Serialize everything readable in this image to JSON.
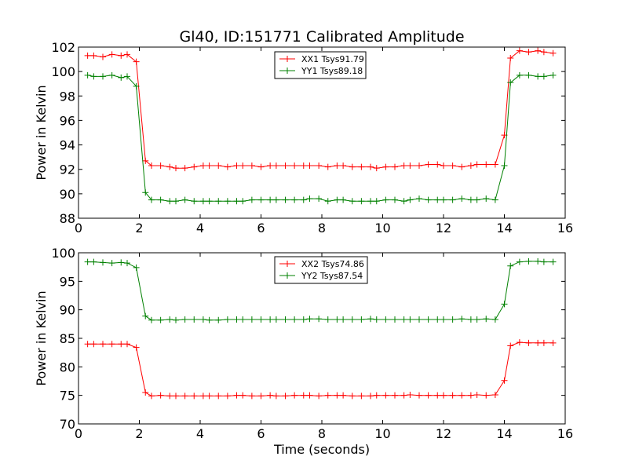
{
  "title": "Gl40, ID:151771 Calibrated Amplitude",
  "chart_data": [
    {
      "type": "line",
      "xlabel": "",
      "ylabel": "Power in Kelvin",
      "xlim": [
        0,
        16
      ],
      "ylim": [
        88,
        102
      ],
      "xticks": [
        0,
        2,
        4,
        6,
        8,
        10,
        12,
        14,
        16
      ],
      "yticks": [
        88,
        90,
        92,
        94,
        96,
        98,
        100,
        102
      ],
      "legend": "top-center",
      "grid": false,
      "x": [
        0.3,
        0.5,
        0.8,
        1.1,
        1.4,
        1.6,
        1.9,
        2.2,
        2.4,
        2.7,
        3.0,
        3.2,
        3.5,
        3.8,
        4.1,
        4.3,
        4.6,
        4.9,
        5.2,
        5.4,
        5.7,
        6.0,
        6.3,
        6.5,
        6.8,
        7.1,
        7.4,
        7.6,
        7.9,
        8.2,
        8.5,
        8.7,
        9.0,
        9.3,
        9.6,
        9.8,
        10.1,
        10.4,
        10.7,
        10.9,
        11.2,
        11.5,
        11.8,
        12.0,
        12.3,
        12.6,
        12.9,
        13.1,
        13.4,
        13.7,
        14.0,
        14.2,
        14.5,
        14.8,
        15.1,
        15.3,
        15.6
      ],
      "series": [
        {
          "name": "XX1 Tsys91.79",
          "color": "#ff0000",
          "values": [
            101.3,
            101.3,
            101.2,
            101.4,
            101.3,
            101.4,
            100.8,
            92.7,
            92.3,
            92.3,
            92.2,
            92.1,
            92.1,
            92.2,
            92.3,
            92.3,
            92.3,
            92.2,
            92.3,
            92.3,
            92.3,
            92.2,
            92.3,
            92.3,
            92.3,
            92.3,
            92.3,
            92.3,
            92.3,
            92.2,
            92.3,
            92.3,
            92.2,
            92.2,
            92.2,
            92.1,
            92.2,
            92.2,
            92.3,
            92.3,
            92.3,
            92.4,
            92.4,
            92.3,
            92.3,
            92.2,
            92.3,
            92.4,
            92.4,
            92.4,
            94.8,
            101.1,
            101.7,
            101.6,
            101.7,
            101.6,
            101.5
          ]
        },
        {
          "name": "YY1 Tsys89.18",
          "color": "#008000",
          "values": [
            99.7,
            99.6,
            99.6,
            99.7,
            99.5,
            99.6,
            98.8,
            90.1,
            89.5,
            89.5,
            89.4,
            89.4,
            89.5,
            89.4,
            89.4,
            89.4,
            89.4,
            89.4,
            89.4,
            89.4,
            89.5,
            89.5,
            89.5,
            89.5,
            89.5,
            89.5,
            89.5,
            89.6,
            89.6,
            89.4,
            89.5,
            89.5,
            89.4,
            89.4,
            89.4,
            89.4,
            89.5,
            89.5,
            89.4,
            89.5,
            89.6,
            89.5,
            89.5,
            89.5,
            89.5,
            89.6,
            89.5,
            89.5,
            89.6,
            89.5,
            92.3,
            99.1,
            99.7,
            99.7,
            99.6,
            99.6,
            99.7
          ]
        }
      ]
    },
    {
      "type": "line",
      "xlabel": "Time (seconds)",
      "ylabel": "Power in Kelvin",
      "xlim": [
        0,
        16
      ],
      "ylim": [
        70,
        100
      ],
      "xticks": [
        0,
        2,
        4,
        6,
        8,
        10,
        12,
        14,
        16
      ],
      "yticks": [
        70,
        75,
        80,
        85,
        90,
        95,
        100
      ],
      "legend": "top-center",
      "grid": false,
      "x": [
        0.3,
        0.5,
        0.8,
        1.1,
        1.4,
        1.6,
        1.9,
        2.2,
        2.4,
        2.7,
        3.0,
        3.2,
        3.5,
        3.8,
        4.1,
        4.3,
        4.6,
        4.9,
        5.2,
        5.4,
        5.7,
        6.0,
        6.3,
        6.5,
        6.8,
        7.1,
        7.4,
        7.6,
        7.9,
        8.2,
        8.5,
        8.7,
        9.0,
        9.3,
        9.6,
        9.8,
        10.1,
        10.4,
        10.7,
        10.9,
        11.2,
        11.5,
        11.8,
        12.0,
        12.3,
        12.6,
        12.9,
        13.1,
        13.4,
        13.7,
        14.0,
        14.2,
        14.5,
        14.8,
        15.1,
        15.3,
        15.6
      ],
      "series": [
        {
          "name": "XX2 Tsys74.86",
          "color": "#ff0000",
          "values": [
            84.0,
            84.0,
            84.0,
            84.0,
            84.0,
            84.0,
            83.4,
            75.5,
            74.9,
            75.0,
            74.9,
            74.9,
            74.9,
            74.9,
            74.9,
            74.9,
            74.9,
            74.9,
            75.0,
            75.0,
            74.9,
            74.9,
            75.0,
            74.9,
            74.9,
            75.0,
            75.0,
            75.0,
            74.9,
            75.0,
            75.0,
            75.0,
            74.9,
            74.9,
            74.9,
            75.0,
            75.0,
            75.0,
            75.0,
            75.1,
            75.0,
            75.0,
            75.0,
            75.0,
            75.0,
            75.0,
            75.0,
            75.1,
            75.0,
            75.1,
            77.6,
            83.7,
            84.3,
            84.2,
            84.2,
            84.2,
            84.2
          ]
        },
        {
          "name": "YY2 Tsys87.54",
          "color": "#008000",
          "values": [
            98.4,
            98.4,
            98.3,
            98.2,
            98.3,
            98.2,
            97.4,
            88.9,
            88.2,
            88.2,
            88.3,
            88.2,
            88.3,
            88.3,
            88.3,
            88.2,
            88.2,
            88.3,
            88.3,
            88.3,
            88.3,
            88.3,
            88.3,
            88.3,
            88.3,
            88.3,
            88.3,
            88.4,
            88.4,
            88.3,
            88.3,
            88.3,
            88.3,
            88.3,
            88.4,
            88.3,
            88.3,
            88.3,
            88.3,
            88.3,
            88.3,
            88.3,
            88.3,
            88.3,
            88.3,
            88.4,
            88.3,
            88.3,
            88.4,
            88.3,
            91.0,
            97.7,
            98.4,
            98.5,
            98.5,
            98.4,
            98.4
          ]
        }
      ]
    }
  ]
}
